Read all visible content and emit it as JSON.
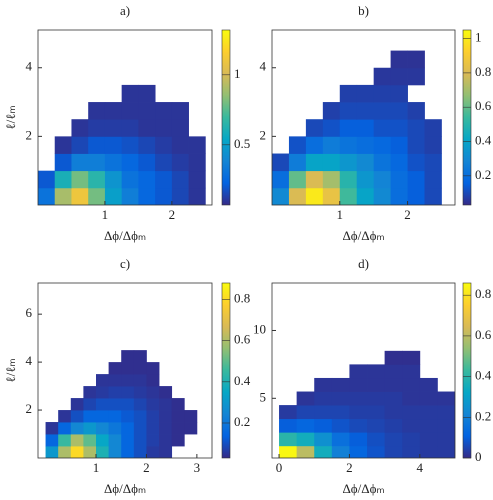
{
  "chart_data": [
    {
      "type": "heatmap",
      "title": "a)",
      "x_label": "Δϕ/Δϕₘ",
      "y_label": "ℓ/ℓₘ",
      "xlim": [
        0,
        2.6
      ],
      "ylim": [
        0,
        5.1
      ],
      "xticks": [
        1,
        2
      ],
      "yticks": [
        2,
        4
      ],
      "clim": [
        0.07,
        1.32
      ],
      "cticks": [
        0.5,
        1
      ],
      "colormap": [
        "#352a87",
        "#0363e1",
        "#1485d4",
        "#06a7c6",
        "#38b99e",
        "#92bf73",
        "#d9ba56",
        "#fcce2e",
        "#f9fb0e"
      ],
      "x_edges": [
        0,
        0.25,
        0.5,
        0.75,
        1,
        1.25,
        1.5,
        1.75,
        2,
        2.25,
        2.5
      ],
      "y_edges": [
        0,
        0.5,
        1,
        1.5,
        2,
        2.5,
        3,
        3.5
      ],
      "values": [
        [
          0.3,
          0.9,
          1.1,
          0.8,
          0.5,
          0.35,
          0.25,
          0.2,
          0.15,
          0.1
        ],
        [
          0.2,
          0.6,
          0.8,
          0.65,
          0.45,
          0.3,
          0.25,
          0.2,
          0.15,
          0.1
        ],
        [
          null,
          0.2,
          0.35,
          0.35,
          0.3,
          0.25,
          0.2,
          0.15,
          0.12,
          0.1
        ],
        [
          null,
          0.1,
          0.15,
          0.2,
          0.2,
          0.18,
          0.15,
          0.12,
          0.1,
          0.1
        ],
        [
          null,
          null,
          0.1,
          0.12,
          0.12,
          0.12,
          0.1,
          0.1,
          0.1,
          null
        ],
        [
          null,
          null,
          null,
          0.1,
          0.1,
          0.1,
          0.1,
          0.1,
          0.1,
          null
        ],
        [
          null,
          null,
          null,
          null,
          null,
          0.1,
          0.1,
          null,
          null,
          null
        ]
      ]
    },
    {
      "type": "heatmap",
      "title": "b)",
      "x_label": "Δϕ/Δϕₘ",
      "xlim": [
        0,
        2.7
      ],
      "ylim": [
        0,
        5.1
      ],
      "xticks": [
        1,
        2
      ],
      "yticks": [
        2,
        4
      ],
      "clim": [
        0.03,
        1.05
      ],
      "cticks": [
        0.2,
        0.4,
        0.6,
        0.8,
        1
      ],
      "colormap": [
        "#352a87",
        "#0363e1",
        "#1485d4",
        "#06a7c6",
        "#38b99e",
        "#92bf73",
        "#d9ba56",
        "#fcce2e",
        "#f9fb0e"
      ],
      "x_edges": [
        0,
        0.25,
        0.5,
        0.75,
        1,
        1.25,
        1.5,
        1.75,
        2,
        2.25,
        2.5
      ],
      "y_edges": [
        0,
        0.5,
        1,
        1.5,
        2,
        2.5,
        3,
        3.5,
        4,
        4.5
      ],
      "values": [
        [
          0.3,
          0.8,
          1.0,
          0.85,
          0.55,
          0.4,
          0.3,
          0.2,
          0.15,
          0.1
        ],
        [
          0.2,
          0.6,
          0.8,
          0.7,
          0.5,
          0.35,
          0.28,
          0.2,
          0.15,
          0.1
        ],
        [
          0.1,
          0.25,
          0.4,
          0.4,
          0.35,
          0.3,
          0.22,
          0.18,
          0.12,
          0.1
        ],
        [
          null,
          0.12,
          0.2,
          0.25,
          0.22,
          0.2,
          0.18,
          0.15,
          0.1,
          0.08
        ],
        [
          null,
          null,
          0.1,
          0.12,
          0.15,
          0.15,
          0.12,
          0.12,
          0.1,
          0.08
        ],
        [
          null,
          null,
          null,
          0.08,
          0.1,
          0.1,
          0.1,
          0.1,
          0.08,
          null
        ],
        [
          null,
          null,
          null,
          null,
          0.08,
          0.08,
          0.08,
          0.08,
          null,
          null
        ],
        [
          null,
          null,
          null,
          null,
          null,
          null,
          0.06,
          0.06,
          0.06,
          null
        ],
        [
          null,
          null,
          null,
          null,
          null,
          null,
          null,
          0.05,
          0.05,
          null
        ]
      ]
    },
    {
      "type": "heatmap",
      "title": "c)",
      "x_label": "Δϕ/Δϕₘ",
      "y_label": "ℓ/ℓₘ",
      "xlim": [
        -0.15,
        3.3
      ],
      "ylim": [
        0,
        7.3
      ],
      "xticks": [
        1,
        2,
        3
      ],
      "yticks": [
        2,
        4,
        6
      ],
      "clim": [
        0.03,
        0.88
      ],
      "cticks": [
        0.2,
        0.4,
        0.6,
        0.8
      ],
      "colormap": [
        "#352a87",
        "#0363e1",
        "#1485d4",
        "#06a7c6",
        "#38b99e",
        "#92bf73",
        "#d9ba56",
        "#fcce2e",
        "#f9fb0e"
      ],
      "x_edges": [
        0,
        0.25,
        0.5,
        0.75,
        1,
        1.25,
        1.5,
        1.75,
        2,
        2.25,
        2.5,
        2.75,
        3,
        3.25
      ],
      "y_edges": [
        0,
        0.5,
        1,
        1.5,
        2,
        2.5,
        3,
        3.5,
        4,
        4.5
      ],
      "values": [
        [
          0.3,
          0.6,
          0.8,
          0.6,
          0.4,
          0.25,
          0.15,
          0.1,
          0.06,
          0.05,
          null,
          null,
          null
        ],
        [
          0.15,
          0.45,
          0.6,
          0.5,
          0.35,
          0.25,
          0.15,
          0.1,
          0.07,
          0.05,
          0.04,
          null,
          null
        ],
        [
          0.05,
          0.15,
          0.25,
          0.3,
          0.25,
          0.2,
          0.15,
          0.1,
          0.07,
          0.05,
          0.04,
          0.04,
          null
        ],
        [
          null,
          0.05,
          0.1,
          0.15,
          0.15,
          0.15,
          0.12,
          0.1,
          0.07,
          0.05,
          0.04,
          0.04,
          null
        ],
        [
          null,
          null,
          0.05,
          0.08,
          0.1,
          0.1,
          0.1,
          0.08,
          0.06,
          0.05,
          0.04,
          null,
          null
        ],
        [
          null,
          null,
          null,
          0.05,
          0.06,
          0.07,
          0.07,
          0.06,
          0.05,
          0.04,
          null,
          null,
          null
        ],
        [
          null,
          null,
          null,
          null,
          0.05,
          0.05,
          0.05,
          0.05,
          0.04,
          null,
          null,
          null,
          null
        ],
        [
          null,
          null,
          null,
          null,
          null,
          0.04,
          0.04,
          0.04,
          0.04,
          null,
          null,
          null,
          null
        ],
        [
          null,
          null,
          null,
          null,
          null,
          null,
          0.04,
          0.04,
          null,
          null,
          null,
          null,
          null
        ]
      ]
    },
    {
      "type": "heatmap",
      "title": "d)",
      "x_label": "Δϕ/Δϕₘ",
      "xlim": [
        -0.2,
        5
      ],
      "ylim": [
        0.6,
        13.5
      ],
      "xticks": [
        0,
        2,
        4
      ],
      "yticks": [
        5,
        10
      ],
      "clim": [
        0,
        0.86
      ],
      "cticks": [
        0,
        0.2,
        0.4,
        0.6,
        0.8
      ],
      "colormap": [
        "#352a87",
        "#0363e1",
        "#1485d4",
        "#06a7c6",
        "#38b99e",
        "#92bf73",
        "#d9ba56",
        "#fcce2e",
        "#f9fb0e"
      ],
      "x_edges": [
        0,
        0.5,
        1,
        1.5,
        2,
        2.5,
        3,
        3.5,
        4,
        4.5,
        5
      ],
      "y_edges": [
        0.6,
        1.5,
        2.5,
        3.5,
        4.5,
        5.5,
        6.5,
        7.5,
        8.5
      ],
      "values": [
        [
          0.85,
          0.6,
          0.35,
          0.2,
          0.12,
          0.08,
          0.05,
          0.04,
          0.03,
          0.03
        ],
        [
          0.4,
          0.35,
          0.25,
          0.15,
          0.1,
          0.07,
          0.05,
          0.04,
          0.03,
          0.03
        ],
        [
          0.1,
          0.12,
          0.1,
          0.08,
          0.06,
          0.05,
          0.04,
          0.03,
          0.03,
          0.03
        ],
        [
          0.03,
          0.05,
          0.05,
          0.05,
          0.04,
          0.04,
          0.03,
          0.03,
          0.03,
          0.03
        ],
        [
          null,
          0.02,
          0.03,
          0.03,
          0.03,
          0.03,
          0.03,
          0.02,
          0.02,
          0.02
        ],
        [
          null,
          null,
          0.02,
          0.02,
          0.02,
          0.02,
          0.02,
          0.02,
          0.02,
          null
        ],
        [
          null,
          null,
          null,
          null,
          0.02,
          0.02,
          0.02,
          0.02,
          null,
          null
        ],
        [
          null,
          null,
          null,
          null,
          null,
          null,
          0.01,
          0.01,
          null,
          null
        ]
      ]
    }
  ]
}
